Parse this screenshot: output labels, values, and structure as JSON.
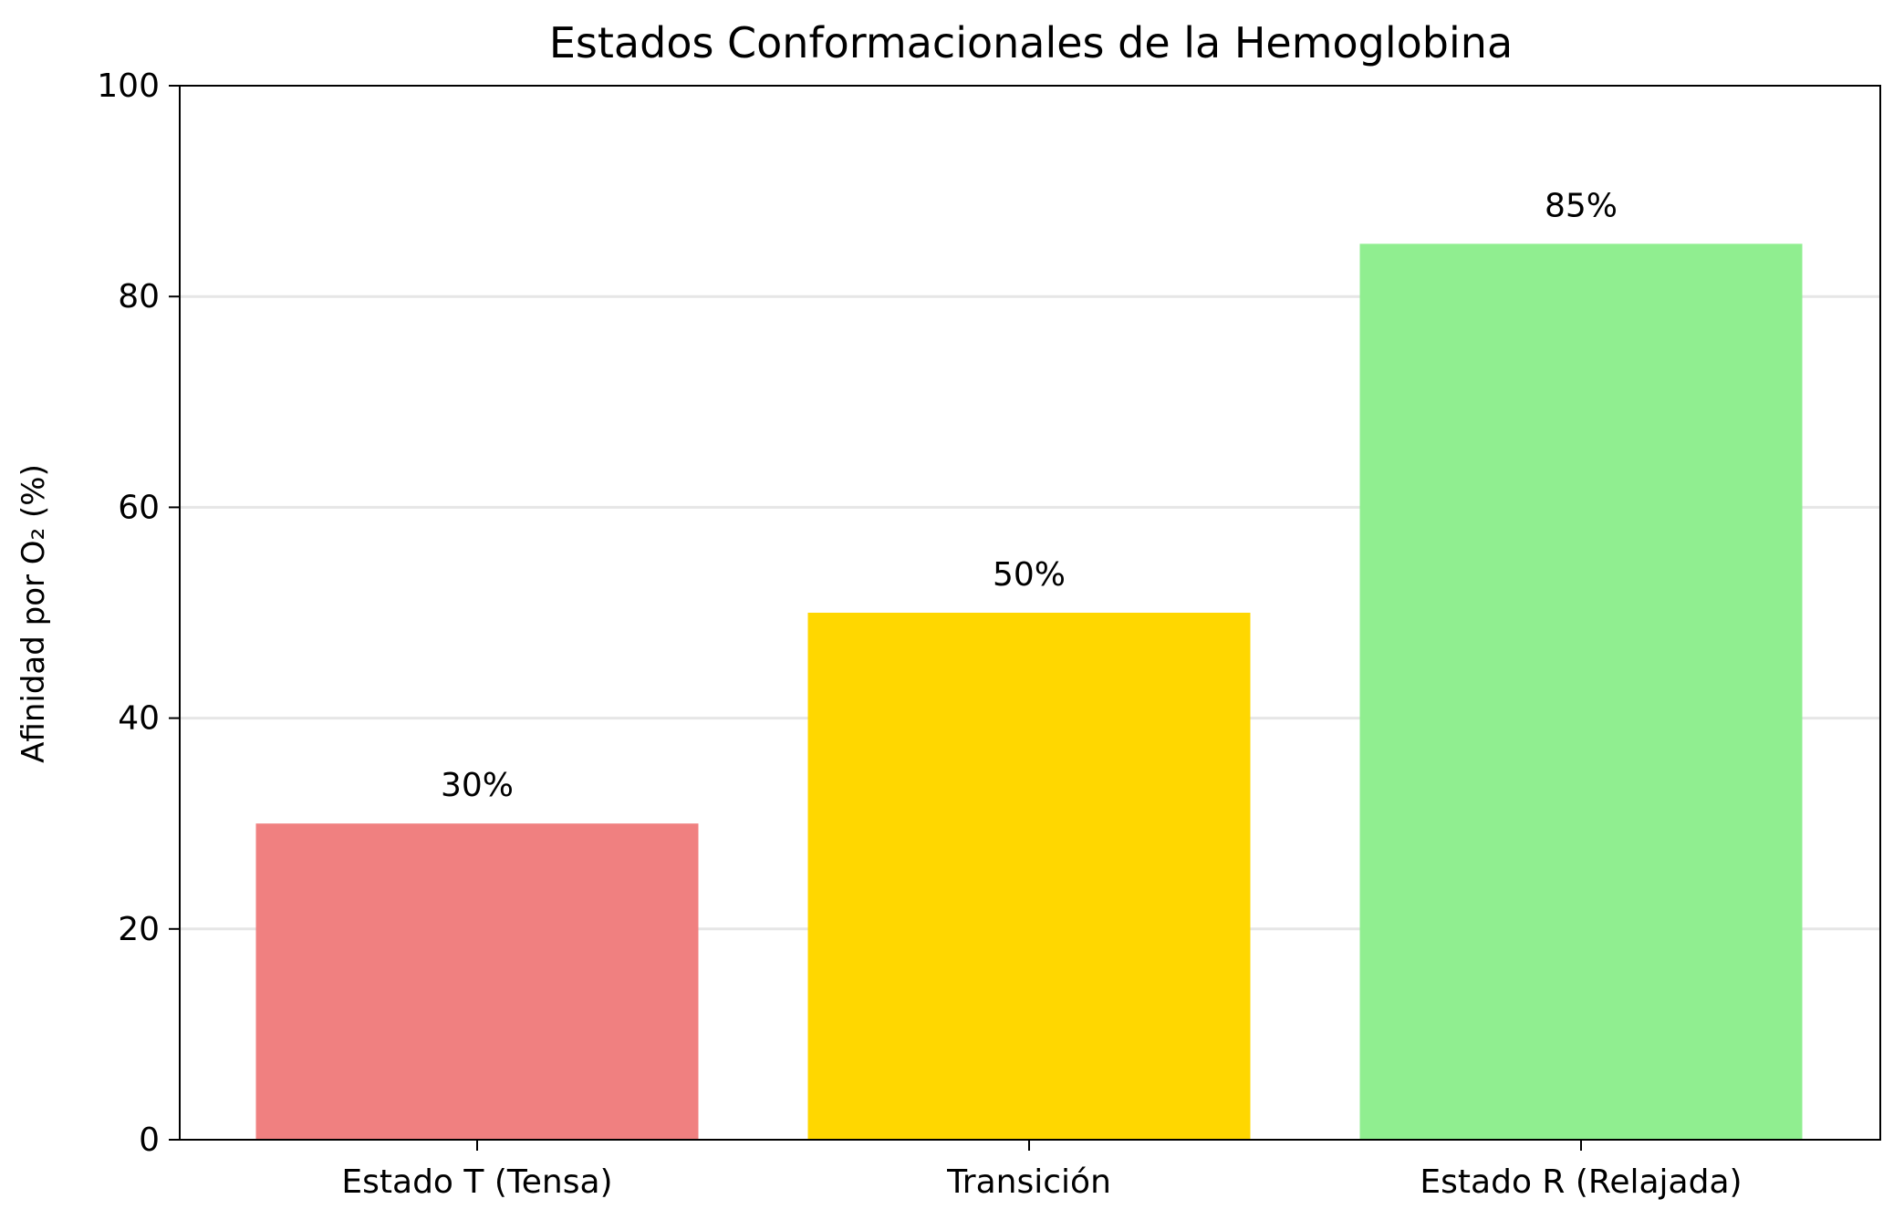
{
  "chart_data": {
    "type": "bar",
    "title": "Estados Conformacionales de la Hemoglobina",
    "xlabel": "",
    "ylabel": "Afinidad por O₂ (%)",
    "categories": [
      "Estado T (Tensa)",
      "Transición",
      "Estado R (Relajada)"
    ],
    "values": [
      30,
      50,
      85
    ],
    "data_labels": [
      "30%",
      "50%",
      "85%"
    ],
    "colors": [
      "#F08080",
      "#FFD700",
      "#90EE90"
    ],
    "ylim": [
      0,
      100
    ],
    "yticks": [
      0,
      20,
      40,
      60,
      80,
      100
    ],
    "grid": {
      "axis": "y",
      "enabled": true
    },
    "legend": "none"
  }
}
